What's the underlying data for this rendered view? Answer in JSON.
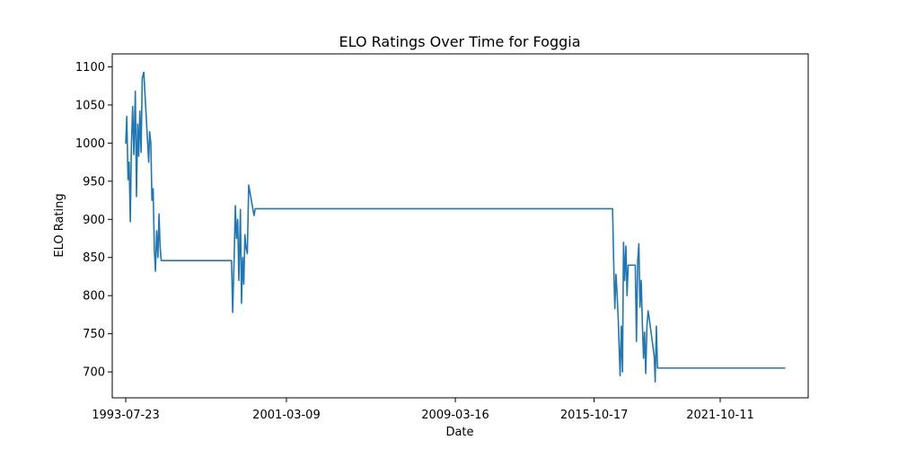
{
  "chart_data": {
    "type": "line",
    "title": "ELO Ratings Over Time for Foggia",
    "xlabel": "Date",
    "ylabel": "ELO Rating",
    "x_ticks": [
      "1993-07-23",
      "2001-03-09",
      "2009-03-16",
      "2015-10-17",
      "2021-10-11"
    ],
    "y_ticks": [
      700,
      750,
      800,
      850,
      900,
      950,
      1000,
      1050,
      1100
    ],
    "xlim": [
      "1992-12-01",
      "2025-12-15"
    ],
    "ylim": [
      666,
      1117
    ],
    "grid": false,
    "legend": "none",
    "series": [
      {
        "color": "#1f77b4",
        "x": [
          "1993-07-23",
          "1993-08-10",
          "1993-09-01",
          "1993-09-20",
          "1993-10-10",
          "1993-10-30",
          "1993-11-20",
          "1993-12-10",
          "1994-01-05",
          "1994-01-25",
          "1994-02-15",
          "1994-03-05",
          "1994-03-25",
          "1994-04-15",
          "1994-05-05",
          "1994-06-01",
          "1994-08-25",
          "1994-09-10",
          "1994-10-01",
          "1994-10-20",
          "1994-11-10",
          "1994-12-01",
          "1994-12-20",
          "1995-01-10",
          "1995-02-01",
          "1995-02-20",
          "1995-03-10",
          "1995-03-30",
          "1995-04-20",
          "1995-05-10",
          "1995-05-30",
          "1995-06-10",
          "1995-08-25",
          "1995-09-10",
          "1995-09-30",
          "1995-10-20",
          "1995-11-10",
          "1995-12-01",
          "1996-01-10",
          "1996-02-10",
          "1996-03-10",
          "1996-04-10",
          "1996-05-10",
          "1998-08-01",
          "1998-08-20",
          "1998-09-15",
          "1998-10-05",
          "1998-10-25",
          "1998-11-15",
          "1998-12-05",
          "1999-01-01",
          "1999-01-20",
          "1999-02-10",
          "1999-03-01",
          "1999-03-20",
          "1999-04-10",
          "1999-05-01",
          "1999-05-25",
          "1999-08-25",
          "1999-09-15",
          "1999-10-05",
          "1999-10-25",
          "1999-11-15",
          "1999-12-05",
          "2000-01-01",
          "2000-01-20",
          "2000-02-10",
          "2000-02-25",
          "2000-03-10",
          "2000-03-25",
          "2016-09-01",
          "2016-09-20",
          "2016-10-10",
          "2016-10-30",
          "2016-11-20",
          "2016-12-10",
          "2017-01-10",
          "2017-02-01",
          "2017-02-20",
          "2017-03-10",
          "2017-03-30",
          "2017-04-20",
          "2017-05-10",
          "2017-05-30",
          "2017-08-25",
          "2017-09-10",
          "2017-09-30",
          "2017-10-20",
          "2017-11-10",
          "2017-12-01",
          "2017-12-20",
          "2018-01-10",
          "2018-02-01",
          "2018-02-20",
          "2018-03-10",
          "2018-03-30",
          "2018-04-20",
          "2018-05-10",
          "2018-05-30",
          "2018-08-25",
          "2018-09-10",
          "2018-09-30",
          "2018-10-20",
          "2018-11-10",
          "2018-12-01",
          "2018-12-20",
          "2019-01-10",
          "2019-02-01",
          "2019-02-20",
          "2019-03-10",
          "2019-03-30",
          "2019-04-20",
          "2019-05-10",
          "2019-05-30",
          "2019-06-10",
          "2024-11-01"
        ],
        "y": [
          1000,
          1035,
          952,
          975,
          897,
          1000,
          1048,
          985,
          1068,
          930,
          1025,
          983,
          1042,
          988,
          1085,
          1093,
          975,
          1015,
          1000,
          925,
          940,
          860,
          832,
          885,
          850,
          907,
          865,
          846,
          846,
          846,
          846,
          846,
          846,
          846,
          846,
          846,
          846,
          846,
          846,
          846,
          846,
          846,
          846,
          846,
          778,
          850,
          918,
          875,
          900,
          820,
          913,
          790,
          850,
          815,
          880,
          862,
          855,
          945,
          905,
          914,
          914,
          914,
          914,
          914,
          914,
          914,
          914,
          914,
          914,
          914,
          914,
          845,
          783,
          828,
          800,
          765,
          695,
          760,
          700,
          870,
          820,
          865,
          800,
          840,
          840,
          840,
          840,
          740,
          845,
          868,
          785,
          820,
          760,
          718,
          752,
          698,
          760,
          780,
          770,
          720,
          687,
          760,
          705,
          705,
          705,
          705,
          705,
          705,
          705,
          705,
          705,
          705,
          705,
          705,
          705,
          705
        ]
      }
    ]
  }
}
